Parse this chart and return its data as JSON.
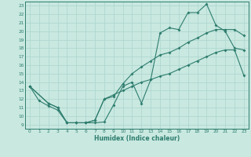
{
  "xlabel": "Humidex (Indice chaleur)",
  "xlim": [
    -0.5,
    23.5
  ],
  "ylim": [
    8.5,
    23.5
  ],
  "xticks": [
    0,
    1,
    2,
    3,
    4,
    5,
    6,
    7,
    8,
    9,
    10,
    11,
    12,
    13,
    14,
    15,
    16,
    17,
    18,
    19,
    20,
    21,
    22,
    23
  ],
  "yticks": [
    9,
    10,
    11,
    12,
    13,
    14,
    15,
    16,
    17,
    18,
    19,
    20,
    21,
    22,
    23
  ],
  "bg_color": "#c8e8e0",
  "grid_color": "#b0d8d0",
  "line_color": "#2e7d6e",
  "curve1_x": [
    0,
    1,
    2,
    3,
    4,
    5,
    6,
    7,
    8,
    9,
    10,
    11,
    12,
    13,
    14,
    15,
    16,
    17,
    18,
    19,
    20,
    21,
    22,
    23
  ],
  "curve1_y": [
    13.5,
    11.8,
    11.2,
    10.7,
    9.2,
    9.2,
    9.2,
    9.2,
    9.3,
    11.3,
    13.5,
    14.0,
    11.5,
    14.3,
    19.8,
    20.4,
    20.2,
    22.2,
    22.2,
    23.2,
    20.7,
    20.0,
    18.0,
    17.8
  ],
  "curve1_markers": [
    0,
    1,
    2,
    3,
    4,
    5,
    6,
    7,
    9,
    10,
    11,
    12,
    13,
    14,
    15,
    16,
    17,
    18,
    19,
    20,
    21,
    22,
    23
  ],
  "curve2_x": [
    0,
    2,
    3,
    4,
    5,
    6,
    7,
    8,
    9,
    10,
    11,
    12,
    13,
    14,
    15,
    16,
    17,
    18,
    19,
    20,
    21,
    22,
    23
  ],
  "curve2_y": [
    13.5,
    11.5,
    11.0,
    9.2,
    9.2,
    9.2,
    9.5,
    12.0,
    12.3,
    13.8,
    15.0,
    15.8,
    16.5,
    17.2,
    17.5,
    18.0,
    18.7,
    19.2,
    19.8,
    20.2,
    20.2,
    20.2,
    19.5
  ],
  "curve3_x": [
    0,
    2,
    3,
    4,
    5,
    6,
    7,
    8,
    9,
    10,
    11,
    12,
    13,
    14,
    15,
    16,
    17,
    18,
    19,
    20,
    21,
    22,
    23
  ],
  "curve3_y": [
    13.5,
    11.5,
    11.0,
    9.2,
    9.2,
    9.2,
    9.5,
    12.0,
    12.5,
    13.0,
    13.5,
    14.0,
    14.3,
    14.7,
    15.0,
    15.5,
    16.0,
    16.5,
    17.0,
    17.5,
    17.8,
    17.8,
    14.8
  ]
}
